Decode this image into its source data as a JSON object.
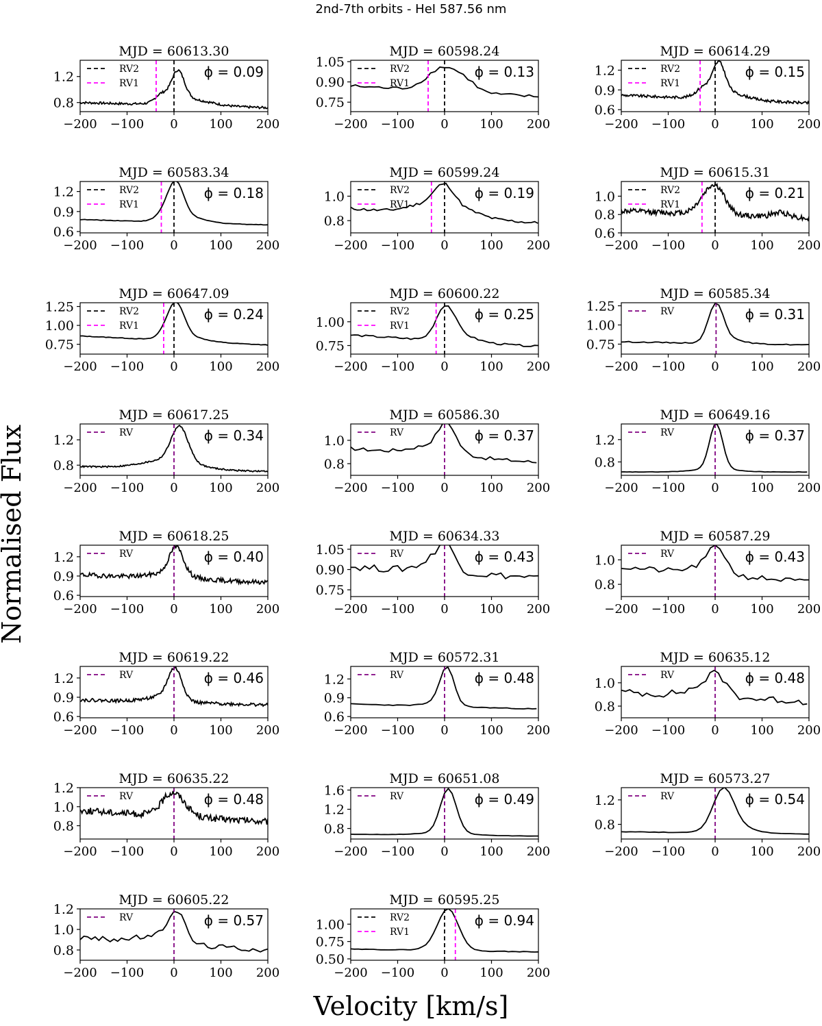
{
  "figure": {
    "suptitle": "2nd-7th orbits - HeI 587.56 nm",
    "xlabel": "Velocity [km/s]",
    "ylabel": "Normalised Flux"
  },
  "chart_data": {
    "type": "line",
    "xlim": [
      -200,
      200
    ],
    "xticks": [
      -200,
      -100,
      0,
      100,
      200
    ],
    "colors": {
      "spectrum": "#000000",
      "rv2": "#000000",
      "rv1": "#ff00ff",
      "rv": "#800080"
    },
    "panels": [
      {
        "title": "MJD = 60613.30",
        "phase": "ϕ = 0.09",
        "mode": "double",
        "rv2": 0,
        "rv1": -38,
        "ylim": [
          0.66,
          1.45
        ],
        "yticks": [
          0.8,
          1.2
        ],
        "ytick_labels": [
          "0.8",
          "1.2"
        ],
        "noise": 0.018,
        "step": 2,
        "comps": [
          {
            "c": 8,
            "a": 0.45,
            "s": 14
          },
          {
            "c": -28,
            "a": 0.12,
            "s": 12
          },
          {
            "c": 30,
            "a": 0.1,
            "s": 45
          }
        ],
        "base": 0.76,
        "slope": -0.0002
      },
      {
        "title": "MJD = 60598.24",
        "phase": "ϕ = 0.13",
        "mode": "double",
        "rv2": 0,
        "rv1": -35,
        "ylim": [
          0.68,
          1.06
        ],
        "yticks": [
          0.75,
          0.9,
          1.05
        ],
        "ytick_labels": [
          "0.75",
          "0.90",
          "1.05"
        ],
        "noise": 0.012,
        "step": 10,
        "comps": [
          {
            "c": 0,
            "a": 0.18,
            "s": 35
          },
          {
            "c": 50,
            "a": 0.04,
            "s": 20
          }
        ],
        "base": 0.83,
        "slope": -0.0002
      },
      {
        "title": "MJD = 60614.29",
        "phase": "ϕ = 0.15",
        "mode": "double",
        "rv2": 0,
        "rv1": -32,
        "ylim": [
          0.57,
          1.35
        ],
        "yticks": [
          0.6,
          0.9,
          1.2
        ],
        "ytick_labels": [
          "0.6",
          "0.9",
          "1.2"
        ],
        "noise": 0.02,
        "step": 2,
        "comps": [
          {
            "c": 8,
            "a": 0.45,
            "s": 13
          },
          {
            "c": -25,
            "a": 0.12,
            "s": 14
          },
          {
            "c": 20,
            "a": 0.12,
            "s": 40
          }
        ],
        "base": 0.76,
        "slope": -0.0003
      },
      {
        "title": "MJD = 60583.34",
        "phase": "ϕ = 0.18",
        "mode": "double",
        "rv2": 0,
        "rv1": -27,
        "ylim": [
          0.58,
          1.35
        ],
        "yticks": [
          0.6,
          0.9,
          1.2
        ],
        "ytick_labels": [
          "0.6",
          "0.9",
          "1.2"
        ],
        "noise": 0.004,
        "step": 5,
        "comps": [
          {
            "c": 4,
            "a": 0.52,
            "s": 17
          },
          {
            "c": -20,
            "a": 0.1,
            "s": 18
          },
          {
            "c": 30,
            "a": 0.08,
            "s": 35
          }
        ],
        "base": 0.74,
        "slope": -0.0002
      },
      {
        "title": "MJD = 60599.24",
        "phase": "ϕ = 0.19",
        "mode": "double",
        "rv2": 0,
        "rv1": -28,
        "ylim": [
          0.7,
          1.12
        ],
        "yticks": [
          0.8,
          1.0
        ],
        "ytick_labels": [
          "0.8",
          "1.0"
        ],
        "noise": 0.012,
        "step": 7,
        "comps": [
          {
            "c": 0,
            "a": 0.2,
            "s": 22
          },
          {
            "c": -40,
            "a": 0.08,
            "s": 40
          },
          {
            "c": 50,
            "a": 0.05,
            "s": 30
          }
        ],
        "base": 0.84,
        "slope": -0.0003
      },
      {
        "title": "MJD = 60615.31",
        "phase": "ϕ = 0.21",
        "mode": "double",
        "rv2": 0,
        "rv1": -28,
        "ylim": [
          0.6,
          1.16
        ],
        "yticks": [
          0.6,
          0.8,
          1.0
        ],
        "ytick_labels": [
          "0.6",
          "0.8",
          "1.0"
        ],
        "noise": 0.03,
        "step": 2,
        "comps": [
          {
            "c": 2,
            "a": 0.28,
            "s": 20
          },
          {
            "c": -25,
            "a": 0.1,
            "s": 20
          },
          {
            "c": 140,
            "a": 0.05,
            "s": 18
          }
        ],
        "base": 0.8,
        "slope": -0.0002
      },
      {
        "title": "MJD = 60647.09",
        "phase": "ϕ = 0.24",
        "mode": "double",
        "rv2": 0,
        "rv1": -22,
        "ylim": [
          0.62,
          1.3
        ],
        "yticks": [
          0.75,
          1.0,
          1.25
        ],
        "ytick_labels": [
          "0.75",
          "1.00",
          "1.25"
        ],
        "noise": 0.004,
        "step": 5,
        "comps": [
          {
            "c": 5,
            "a": 0.44,
            "s": 17
          },
          {
            "c": -18,
            "a": 0.08,
            "s": 15
          },
          {
            "c": 30,
            "a": 0.06,
            "s": 35
          }
        ],
        "base": 0.8,
        "slope": -0.0003
      },
      {
        "title": "MJD = 60600.22",
        "phase": "ϕ = 0.25",
        "mode": "double",
        "rv2": 0,
        "rv1": -18,
        "ylim": [
          0.66,
          1.2
        ],
        "yticks": [
          0.75,
          1.0
        ],
        "ytick_labels": [
          "0.75",
          "1.00"
        ],
        "noise": 0.01,
        "step": 8,
        "comps": [
          {
            "c": 2,
            "a": 0.35,
            "s": 20
          },
          {
            "c": 40,
            "a": 0.06,
            "s": 30
          }
        ],
        "base": 0.8,
        "slope": -0.0003
      },
      {
        "title": "MJD = 60585.34",
        "phase": "ϕ = 0.31",
        "mode": "single",
        "rv": 2,
        "ylim": [
          0.62,
          1.29
        ],
        "yticks": [
          0.75,
          1.0,
          1.25
        ],
        "ytick_labels": [
          "0.75",
          "1.00",
          "1.25"
        ],
        "noise": 0.006,
        "step": 8,
        "comps": [
          {
            "c": 2,
            "a": 0.5,
            "s": 16
          },
          {
            "c": 30,
            "a": 0.05,
            "s": 30
          }
        ],
        "base": 0.76,
        "slope": -0.0001
      },
      {
        "title": "MJD = 60617.25",
        "phase": "ϕ = 0.34",
        "mode": "single",
        "rv": 0,
        "ylim": [
          0.64,
          1.45
        ],
        "yticks": [
          0.8,
          1.2
        ],
        "ytick_labels": [
          "0.8",
          "1.2"
        ],
        "noise": 0.012,
        "step": 2,
        "comps": [
          {
            "c": 12,
            "a": 0.55,
            "s": 18
          },
          {
            "c": -10,
            "a": 0.14,
            "s": 55
          }
        ],
        "base": 0.74,
        "slope": -0.0002
      },
      {
        "title": "MJD = 60586.30",
        "phase": "ϕ = 0.37",
        "mode": "single",
        "rv": 0,
        "ylim": [
          0.7,
          1.14
        ],
        "yticks": [
          0.8,
          1.0
        ],
        "ytick_labels": [
          "0.8",
          "1.0"
        ],
        "noise": 0.015,
        "step": 9,
        "comps": [
          {
            "c": 5,
            "a": 0.22,
            "s": 18
          },
          {
            "c": -20,
            "a": 0.08,
            "s": 45
          }
        ],
        "base": 0.87,
        "slope": -0.0003
      },
      {
        "title": "MJD = 60649.16",
        "phase": "ϕ = 0.37",
        "mode": "single",
        "rv": 0,
        "ylim": [
          0.56,
          1.48
        ],
        "yticks": [
          0.8,
          1.2
        ],
        "ytick_labels": [
          "0.8",
          "1.2"
        ],
        "noise": 0.003,
        "step": 6,
        "comps": [
          {
            "c": 2,
            "a": 0.82,
            "s": 14
          },
          {
            "c": 0,
            "a": 0.05,
            "s": 45
          }
        ],
        "base": 0.62,
        "slope": 0
      },
      {
        "title": "MJD = 60618.25",
        "phase": "ϕ = 0.40",
        "mode": "single",
        "rv": 0,
        "ylim": [
          0.58,
          1.38
        ],
        "yticks": [
          0.6,
          0.9,
          1.2
        ],
        "ytick_labels": [
          "0.6",
          "0.9",
          "1.2"
        ],
        "noise": 0.035,
        "step": 2,
        "comps": [
          {
            "c": 5,
            "a": 0.42,
            "s": 15
          },
          {
            "c": -10,
            "a": 0.08,
            "s": 40
          }
        ],
        "base": 0.86,
        "slope": -0.0003
      },
      {
        "title": "MJD = 60634.33",
        "phase": "ϕ = 0.43",
        "mode": "single",
        "rv": 0,
        "ylim": [
          0.7,
          1.08
        ],
        "yticks": [
          0.75,
          0.9,
          1.05
        ],
        "ytick_labels": [
          "0.75",
          "0.90",
          "1.05"
        ],
        "noise": 0.025,
        "step": 10,
        "comps": [
          {
            "c": 2,
            "a": 0.18,
            "s": 20
          },
          {
            "c": -30,
            "a": 0.06,
            "s": 30
          }
        ],
        "base": 0.88,
        "slope": -0.0002
      },
      {
        "title": "MJD = 60587.29",
        "phase": "ϕ = 0.43",
        "mode": "single",
        "rv": 0,
        "ylim": [
          0.7,
          1.12
        ],
        "yticks": [
          0.8,
          1.0
        ],
        "ytick_labels": [
          "0.8",
          "1.0"
        ],
        "noise": 0.022,
        "step": 10,
        "comps": [
          {
            "c": 5,
            "a": 0.2,
            "s": 18
          },
          {
            "c": -25,
            "a": 0.06,
            "s": 30
          }
        ],
        "base": 0.88,
        "slope": -0.0003
      },
      {
        "title": "MJD = 60619.22",
        "phase": "ϕ = 0.46",
        "mode": "single",
        "rv": 0,
        "ylim": [
          0.58,
          1.38
        ],
        "yticks": [
          0.6,
          0.9,
          1.2
        ],
        "ytick_labels": [
          "0.6",
          "0.9",
          "1.2"
        ],
        "noise": 0.025,
        "step": 2,
        "comps": [
          {
            "c": 2,
            "a": 0.48,
            "s": 15
          },
          {
            "c": -25,
            "a": 0.08,
            "s": 35
          }
        ],
        "base": 0.82,
        "slope": -0.0002
      },
      {
        "title": "MJD = 60572.31",
        "phase": "ϕ = 0.48",
        "mode": "single",
        "rv": 0,
        "ylim": [
          0.58,
          1.4
        ],
        "yticks": [
          0.6,
          0.9,
          1.2
        ],
        "ytick_labels": [
          "0.6",
          "0.9",
          "1.2"
        ],
        "noise": 0.006,
        "step": 9,
        "comps": [
          {
            "c": 5,
            "a": 0.6,
            "s": 15
          },
          {
            "c": -15,
            "a": 0.05,
            "s": 30
          }
        ],
        "base": 0.76,
        "slope": -0.0002
      },
      {
        "title": "MJD = 60635.12",
        "phase": "ϕ = 0.48",
        "mode": "single",
        "rv": 0,
        "ylim": [
          0.7,
          1.14
        ],
        "yticks": [
          0.8,
          1.0
        ],
        "ytick_labels": [
          "0.8",
          "1.0"
        ],
        "noise": 0.03,
        "step": 9,
        "comps": [
          {
            "c": 2,
            "a": 0.18,
            "s": 22
          },
          {
            "c": -40,
            "a": 0.05,
            "s": 30
          }
        ],
        "base": 0.88,
        "slope": -0.0002
      },
      {
        "title": "MJD = 60635.22",
        "phase": "ϕ = 0.48",
        "mode": "single",
        "rv": 0,
        "ylim": [
          0.66,
          1.2
        ],
        "yticks": [
          0.8,
          1.0,
          1.2
        ],
        "ytick_labels": [
          "0.8",
          "1.0",
          "1.2"
        ],
        "noise": 0.035,
        "step": 2,
        "comps": [
          {
            "c": -5,
            "a": 0.18,
            "s": 22
          },
          {
            "c": 10,
            "a": 0.08,
            "s": 25
          }
        ],
        "base": 0.9,
        "slope": -0.0003
      },
      {
        "title": "MJD = 60651.08",
        "phase": "ϕ = 0.49",
        "mode": "single",
        "rv": 0,
        "ylim": [
          0.58,
          1.65
        ],
        "yticks": [
          0.8,
          1.2,
          1.6
        ],
        "ytick_labels": [
          "0.8",
          "1.2",
          "1.6"
        ],
        "noise": 0.003,
        "step": 8,
        "comps": [
          {
            "c": 8,
            "a": 0.92,
            "s": 17
          },
          {
            "c": 0,
            "a": 0.05,
            "s": 50
          }
        ],
        "base": 0.66,
        "slope": -0.0001
      },
      {
        "title": "MJD = 60573.27",
        "phase": "ϕ = 0.54",
        "mode": "single",
        "rv": 0,
        "ylim": [
          0.56,
          1.4
        ],
        "yticks": [
          0.8,
          1.2
        ],
        "ytick_labels": [
          "0.8",
          "1.2"
        ],
        "noise": 0.004,
        "step": 10,
        "comps": [
          {
            "c": 18,
            "a": 0.66,
            "s": 22
          },
          {
            "c": 40,
            "a": 0.1,
            "s": 40
          }
        ],
        "base": 0.66,
        "slope": -0.0001
      },
      {
        "title": "MJD = 60605.22",
        "phase": "ϕ = 0.57",
        "mode": "single",
        "rv": 0,
        "ylim": [
          0.7,
          1.2
        ],
        "yticks": [
          0.8,
          1.0,
          1.2
        ],
        "ytick_labels": [
          "0.8",
          "1.0",
          "1.2"
        ],
        "noise": 0.025,
        "step": 8,
        "comps": [
          {
            "c": 5,
            "a": 0.3,
            "s": 18
          },
          {
            "c": -40,
            "a": 0.06,
            "s": 40
          }
        ],
        "base": 0.86,
        "slope": -0.0003
      },
      {
        "title": "MJD = 60595.25",
        "phase": "ϕ = 0.94",
        "mode": "double",
        "rv2": 0,
        "rv1": 23,
        "ylim": [
          0.48,
          1.22
        ],
        "yticks": [
          0.5,
          0.75,
          1.0
        ],
        "ytick_labels": [
          "0.50",
          "0.75",
          "1.00"
        ],
        "noise": 0.004,
        "step": 8,
        "comps": [
          {
            "c": 8,
            "a": 0.56,
            "s": 22
          },
          {
            "c": -10,
            "a": 0.05,
            "s": 30
          }
        ],
        "base": 0.62,
        "slope": -0.0001
      }
    ],
    "legend": {
      "rv2": "RV2",
      "rv1": "RV1",
      "rv": "RV"
    }
  }
}
